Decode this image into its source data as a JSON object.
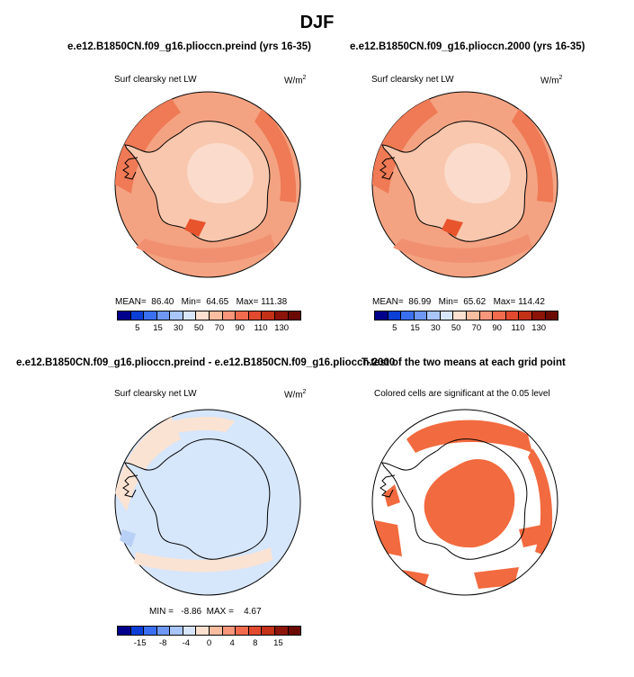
{
  "title": "DJF",
  "panels": {
    "p1": {
      "subtitle": "e.e12.B1850CN.f09_g16.plioccn.preind (yrs 16-35)",
      "variable": "Surf clearsky net LW",
      "units": "W/m",
      "units_exp": "2",
      "stats": {
        "mean_label": "MEAN=",
        "mean": "86.40",
        "min_label": "Min=",
        "min": "64.65",
        "max_label": "Max=",
        "max": "111.38"
      }
    },
    "p2": {
      "subtitle": "e.e12.B1850CN.f09_g16.plioccn.2000 (yrs 16-35)",
      "variable": "Surf clearsky net LW",
      "units": "W/m",
      "units_exp": "2",
      "stats": {
        "mean_label": "MEAN=",
        "mean": "86.99",
        "min_label": "Min=",
        "min": "65.62",
        "max_label": "Max=",
        "max": "114.42"
      }
    },
    "p3": {
      "subtitle": "e.e12.B1850CN.f09_g16.plioccn.preind - e.e12.B1850CN.f09_g16.plioccn.2000",
      "variable": "Surf clearsky net LW",
      "units": "W/m",
      "units_exp": "2",
      "stats": {
        "min_label": "MIN =",
        "min": "-8.86",
        "max_label": "MAX =",
        "max": "4.67"
      }
    },
    "p4": {
      "subtitle": "T-test of the two means at each grid point",
      "note": "Colored cells are significant at the 0.05 level"
    }
  },
  "chart_data": [
    {
      "type": "heatmap",
      "panel": "p1",
      "projection": "south-polar stereographic",
      "colorbar_ticks": [
        "5",
        "15",
        "30",
        "50",
        "70",
        "90",
        "110",
        "130"
      ],
      "colorbar_colors": [
        "#00008b",
        "#0b3fd6",
        "#3a6ff0",
        "#6f98f4",
        "#a9c6fb",
        "#d8e6fd",
        "#fde0cf",
        "#fbbd9f",
        "#f7967a",
        "#f16b4e",
        "#e24a2f",
        "#c23118",
        "#8c1408",
        "#6b0a03"
      ],
      "stats": {
        "mean": 86.4,
        "min": 64.65,
        "max": 111.38
      }
    },
    {
      "type": "heatmap",
      "panel": "p2",
      "projection": "south-polar stereographic",
      "colorbar_ticks": [
        "5",
        "15",
        "30",
        "50",
        "70",
        "90",
        "110",
        "130"
      ],
      "colorbar_colors": [
        "#00008b",
        "#0b3fd6",
        "#3a6ff0",
        "#6f98f4",
        "#a9c6fb",
        "#d8e6fd",
        "#fde0cf",
        "#fbbd9f",
        "#f7967a",
        "#f16b4e",
        "#e24a2f",
        "#c23118",
        "#8c1408",
        "#6b0a03"
      ],
      "stats": {
        "mean": 86.99,
        "min": 65.62,
        "max": 114.42
      }
    },
    {
      "type": "heatmap",
      "panel": "p3",
      "projection": "south-polar stereographic",
      "colorbar_ticks": [
        "-15",
        "-8",
        "-4",
        "0",
        "4",
        "8",
        "15"
      ],
      "colorbar_colors": [
        "#00008b",
        "#0b3fd6",
        "#3a6ff0",
        "#6f98f4",
        "#a9c6fb",
        "#d8e6fd",
        "#fde0cf",
        "#fbbd9f",
        "#f7967a",
        "#f16b4e",
        "#e24a2f",
        "#c23118",
        "#8c1408",
        "#6b0a03"
      ],
      "stats": {
        "min": -8.86,
        "max": 4.67
      }
    },
    {
      "type": "heatmap",
      "panel": "p4",
      "projection": "south-polar stereographic",
      "significant_color": "#f26a3f"
    }
  ]
}
